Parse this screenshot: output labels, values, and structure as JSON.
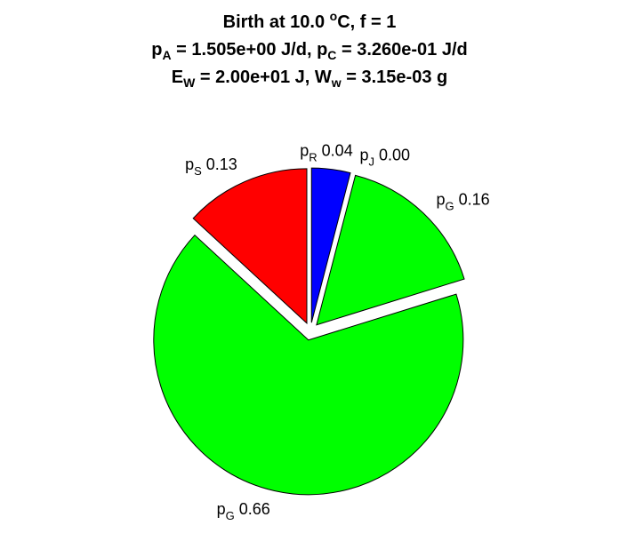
{
  "title": {
    "line1_prefix": "Birth at 10.0 ",
    "line1_sup": "o",
    "line1_suffix": "C, f = 1",
    "line2_a_main": "p",
    "line2_a_sub": "A",
    "line2_a_val": " = 1.505e+00 J/d, ",
    "line2_c_main": "p",
    "line2_c_sub": "C",
    "line2_c_val": " = 3.260e-01 J/d",
    "line3_e_main": "E",
    "line3_e_sub": "W",
    "line3_e_val": " = 2.00e+01 J, ",
    "line3_w_main": "W",
    "line3_w_sub": "w",
    "line3_w_val": " = 3.15e-03 g"
  },
  "chart_data": {
    "type": "pie",
    "title": "Birth at 10.0 oC, f = 1; pA = 1.505e+00 J/d, pC = 3.260e-01 J/d; EW = 2.00e+01 J, Ww = 3.15e-03 g",
    "slices": [
      {
        "main": "p",
        "sub": "R",
        "value": 0.04,
        "value_text": " 0.04",
        "color": "#0000ff"
      },
      {
        "main": "p",
        "sub": "J",
        "value": 0.0,
        "value_text": " 0.00",
        "color": "#ff00ff"
      },
      {
        "main": "p",
        "sub": "G",
        "value": 0.16,
        "value_text": " 0.16",
        "color": "#00ff00"
      },
      {
        "main": "p",
        "sub": "G",
        "value": 0.66,
        "value_text": " 0.66",
        "color": "#00ff00"
      },
      {
        "main": "p",
        "sub": "S",
        "value": 0.13,
        "value_text": " 0.13",
        "color": "#ff0000"
      }
    ],
    "exploded": true,
    "start": "top, clockwise"
  }
}
